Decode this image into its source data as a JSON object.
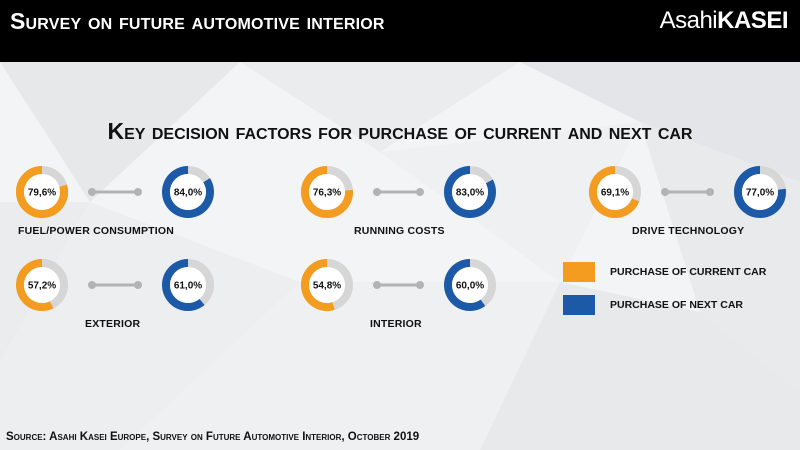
{
  "header": {
    "title": "Survey on future automotive interior",
    "logo_light": "Asahi",
    "logo_bold": "KASEI"
  },
  "colors": {
    "current": "#f39c1f",
    "next": "#1c5aa8",
    "track": "#d6d6d6",
    "connector": "#b3b3b3"
  },
  "chart_data": {
    "type": "donut",
    "title": "Key decision factors for purchase of current and next car",
    "unit": "%",
    "series": [
      {
        "name": "purchase of current car",
        "values": [
          "79,6%",
          "76,3%",
          "69,1%",
          "57,2%",
          "54,8%"
        ],
        "numeric": [
          79.6,
          76.3,
          69.1,
          57.2,
          54.8
        ]
      },
      {
        "name": "purchase of next car",
        "values": [
          "84,0%",
          "83,0%",
          "77,0%",
          "61,0%",
          "60,0%"
        ],
        "numeric": [
          84.0,
          83.0,
          77.0,
          61.0,
          60.0
        ]
      }
    ],
    "categories": [
      "fuel/power consumption",
      "running costs",
      "Drive technology",
      "exterior",
      "interior"
    ]
  },
  "source": "Source: Asahi Kasei Europe, Survey on Future Automotive Interior, October 2019"
}
